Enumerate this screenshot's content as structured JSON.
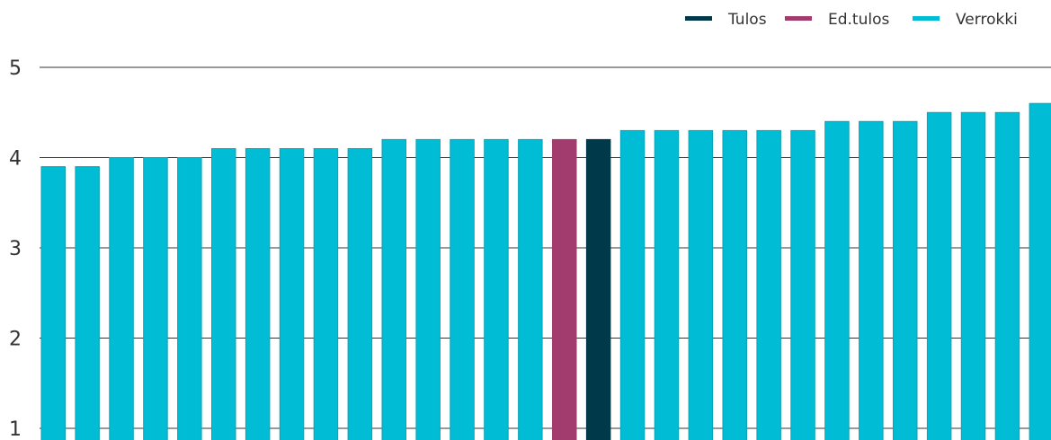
{
  "chart_data": {
    "type": "bar",
    "title": "",
    "xlabel": "",
    "ylabel": "",
    "ylim": [
      0.85,
      5
    ],
    "y_ticks": [
      1,
      2,
      3,
      4,
      5
    ],
    "grid": true,
    "legend_position": "top-right",
    "legend": [
      {
        "name": "Tulos",
        "color": "#003a4a"
      },
      {
        "name": "Ed.tulos",
        "color": "#a23c6e"
      },
      {
        "name": "Verrokki",
        "color": "#00bcd4"
      }
    ],
    "bars": [
      {
        "value": 3.9,
        "series": "Verrokki"
      },
      {
        "value": 3.9,
        "series": "Verrokki"
      },
      {
        "value": 4.0,
        "series": "Verrokki"
      },
      {
        "value": 4.0,
        "series": "Verrokki"
      },
      {
        "value": 4.0,
        "series": "Verrokki"
      },
      {
        "value": 4.1,
        "series": "Verrokki"
      },
      {
        "value": 4.1,
        "series": "Verrokki"
      },
      {
        "value": 4.1,
        "series": "Verrokki"
      },
      {
        "value": 4.1,
        "series": "Verrokki"
      },
      {
        "value": 4.1,
        "series": "Verrokki"
      },
      {
        "value": 4.2,
        "series": "Verrokki"
      },
      {
        "value": 4.2,
        "series": "Verrokki"
      },
      {
        "value": 4.2,
        "series": "Verrokki"
      },
      {
        "value": 4.2,
        "series": "Verrokki"
      },
      {
        "value": 4.2,
        "series": "Verrokki"
      },
      {
        "value": 4.2,
        "series": "Ed.tulos"
      },
      {
        "value": 4.2,
        "series": "Tulos"
      },
      {
        "value": 4.3,
        "series": "Verrokki"
      },
      {
        "value": 4.3,
        "series": "Verrokki"
      },
      {
        "value": 4.3,
        "series": "Verrokki"
      },
      {
        "value": 4.3,
        "series": "Verrokki"
      },
      {
        "value": 4.3,
        "series": "Verrokki"
      },
      {
        "value": 4.3,
        "series": "Verrokki"
      },
      {
        "value": 4.4,
        "series": "Verrokki"
      },
      {
        "value": 4.4,
        "series": "Verrokki"
      },
      {
        "value": 4.4,
        "series": "Verrokki"
      },
      {
        "value": 4.5,
        "series": "Verrokki"
      },
      {
        "value": 4.5,
        "series": "Verrokki"
      },
      {
        "value": 4.5,
        "series": "Verrokki"
      },
      {
        "value": 4.6,
        "series": "Verrokki"
      }
    ]
  }
}
